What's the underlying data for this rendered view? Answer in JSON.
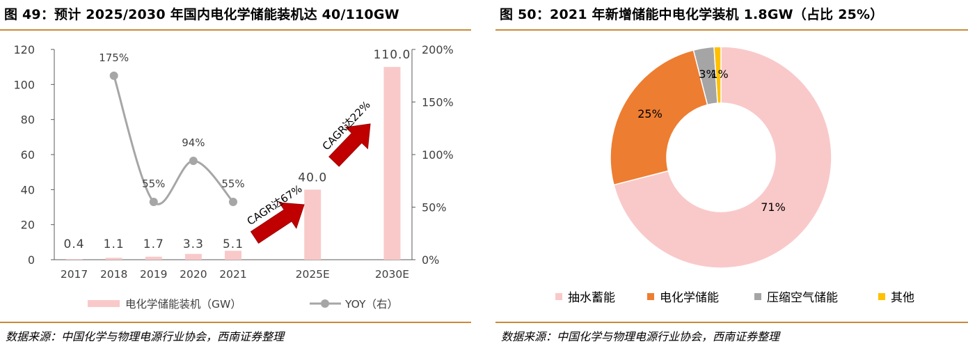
{
  "left": {
    "title": "图 49：预计 2025/2030 年国内电化学储能装机达 40/110GW",
    "source": "数据来源：中国化学与物理电源行业协会，西南证券整理",
    "annotations": {
      "arrow1": "CAGR达67%",
      "arrow2": "CAGR达22%"
    }
  },
  "right": {
    "title": "图 50：2021 年新增储能中电化学装机 1.8GW（占比 25%）",
    "source": "数据来源：中国化学与物理电源行业协会，西南证券整理"
  },
  "chart_data": [
    {
      "type": "bar",
      "categories": [
        "2017",
        "2018",
        "2019",
        "2020",
        "2021",
        "",
        "2025E",
        "",
        "2030E"
      ],
      "series": [
        {
          "name": "电化学储能装机（GW）",
          "kind": "bar",
          "axis": "left",
          "color": "#f9c9c9",
          "values": [
            0.4,
            1.1,
            1.7,
            3.3,
            5.1,
            null,
            40.0,
            null,
            110.0
          ],
          "labels": [
            "0.4",
            "1.1",
            "1.7",
            "3.3",
            "5.1",
            null,
            "40.0",
            null,
            "110.0"
          ]
        },
        {
          "name": "YOY（右）",
          "kind": "line",
          "axis": "right",
          "color": "#a6a6a6",
          "values": [
            null,
            175,
            55,
            94,
            55,
            null,
            null,
            null,
            null
          ],
          "labels": [
            null,
            "175%",
            "55%",
            "94%",
            "55%",
            null,
            null,
            null,
            null
          ]
        }
      ],
      "ylim": [
        0,
        120
      ],
      "yticks": [
        "0",
        "20",
        "40",
        "60",
        "80",
        "100",
        "120"
      ],
      "y2lim": [
        0,
        200
      ],
      "y2ticks": [
        "0%",
        "50%",
        "100%",
        "150%",
        "200%"
      ],
      "legend": "bottom"
    },
    {
      "type": "pie",
      "donut": true,
      "slices": [
        {
          "name": "抽水蓄能",
          "value": 71,
          "label": "71%",
          "color": "#f9c9c9"
        },
        {
          "name": "电化学储能",
          "value": 25,
          "label": "25%",
          "color": "#ed7d31"
        },
        {
          "name": "压缩空气储能",
          "value": 3,
          "label": "3%",
          "color": "#a5a5a5"
        },
        {
          "name": "其他",
          "value": 1,
          "label": "1%",
          "color": "#ffc000"
        }
      ],
      "legend": "bottom"
    }
  ]
}
